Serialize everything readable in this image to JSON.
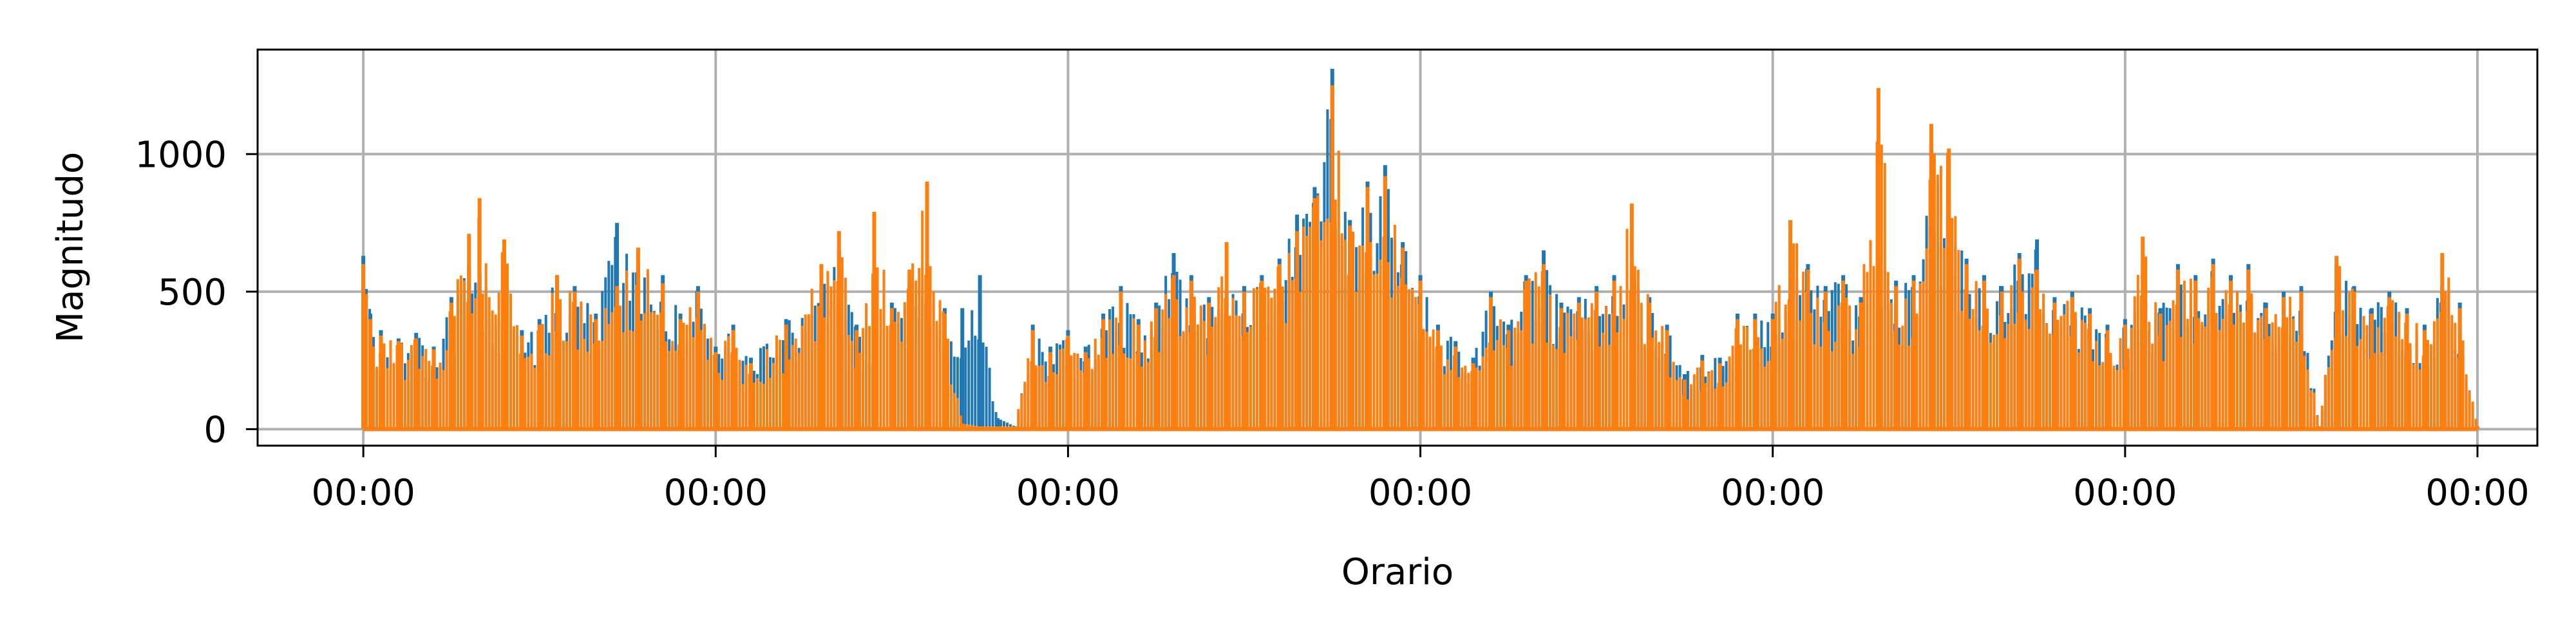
{
  "chart_data": {
    "type": "line",
    "title": "",
    "xlabel": "Orario",
    "ylabel": "Magnitudo",
    "x_tick_labels": [
      "00:00",
      "00:00",
      "00:00",
      "00:00",
      "00:00",
      "00:00",
      "00:00"
    ],
    "x_ticks": [
      0,
      1,
      2,
      3,
      4,
      5,
      6
    ],
    "xlim": [
      -0.3,
      6.17
    ],
    "y_ticks": [
      0,
      500,
      1000
    ],
    "y_tick_labels": [
      "0",
      "500",
      "1000"
    ],
    "ylim": [
      -60,
      1380
    ],
    "grid": true,
    "legend": "none",
    "series": [
      {
        "color": "#1f77b4",
        "x": [
          0.0,
          0.02,
          0.05,
          0.1,
          0.15,
          0.2,
          0.25,
          0.3,
          0.33,
          0.4,
          0.45,
          0.5,
          0.55,
          0.6,
          0.66,
          0.72,
          0.78,
          0.85,
          0.9,
          0.95,
          1.0,
          1.05,
          1.1,
          1.2,
          1.3,
          1.35,
          1.4,
          1.45,
          1.5,
          1.55,
          1.6,
          1.65,
          1.7,
          1.75,
          1.8,
          1.85,
          1.9,
          1.95,
          2.0,
          2.05,
          2.1,
          2.15,
          2.2,
          2.25,
          2.3,
          2.35,
          2.4,
          2.45,
          2.5,
          2.55,
          2.6,
          2.65,
          2.7,
          2.75,
          2.8,
          2.85,
          2.9,
          2.95,
          3.0,
          3.05,
          3.1,
          3.15,
          3.2,
          3.25,
          3.3,
          3.35,
          3.4,
          3.45,
          3.5,
          3.55,
          3.6,
          3.65,
          3.7,
          3.75,
          3.8,
          3.85,
          3.9,
          3.95,
          4.0,
          4.05,
          4.1,
          4.15,
          4.2,
          4.25,
          4.3,
          4.35,
          4.4,
          4.45,
          4.5,
          4.55,
          4.6,
          4.65,
          4.7,
          4.75,
          4.8,
          4.85,
          4.9,
          4.95,
          5.0,
          5.05,
          5.1,
          5.15,
          5.2,
          5.25,
          5.3,
          5.35,
          5.4,
          5.45,
          5.5,
          5.55,
          5.6,
          5.65,
          5.7,
          5.75,
          5.8,
          5.85,
          5.9,
          5.95,
          6.0
        ],
        "y": [
          630,
          420,
          360,
          330,
          350,
          300,
          480,
          600,
          560,
          420,
          360,
          400,
          560,
          520,
          420,
          750,
          600,
          560,
          420,
          520,
          300,
          380,
          260,
          400,
          520,
          650,
          380,
          340,
          460,
          520,
          600,
          440,
          440,
          560,
          40,
          10,
          380,
          300,
          360,
          300,
          420,
          520,
          400,
          460,
          640,
          560,
          480,
          500,
          520,
          560,
          620,
          780,
          880,
          1310,
          760,
          900,
          960,
          680,
          560,
          380,
          320,
          260,
          500,
          380,
          560,
          650,
          460,
          480,
          520,
          560,
          600,
          480,
          380,
          200,
          270,
          260,
          420,
          420,
          420,
          560,
          600,
          520,
          560,
          480,
          620,
          540,
          560,
          1040,
          830,
          620,
          560,
          520,
          640,
          690,
          480,
          500,
          440,
          380,
          400,
          480,
          440,
          600,
          560,
          620,
          560,
          600,
          460,
          500,
          520,
          10,
          600,
          520,
          440,
          500,
          440,
          380,
          520,
          460,
          10
        ],
        "values_note": ""
      },
      {
        "color": "#ff7f0e",
        "x": [
          0.0,
          0.02,
          0.05,
          0.1,
          0.15,
          0.2,
          0.25,
          0.3,
          0.33,
          0.4,
          0.45,
          0.5,
          0.55,
          0.6,
          0.66,
          0.72,
          0.78,
          0.85,
          0.9,
          0.95,
          1.0,
          1.05,
          1.1,
          1.2,
          1.3,
          1.35,
          1.4,
          1.45,
          1.5,
          1.55,
          1.6,
          1.65,
          1.7,
          1.75,
          1.8,
          1.85,
          1.9,
          1.95,
          2.0,
          2.05,
          2.1,
          2.15,
          2.2,
          2.25,
          2.3,
          2.35,
          2.4,
          2.45,
          2.5,
          2.55,
          2.6,
          2.65,
          2.7,
          2.75,
          2.8,
          2.85,
          2.9,
          2.95,
          3.0,
          3.05,
          3.1,
          3.15,
          3.2,
          3.25,
          3.3,
          3.35,
          3.4,
          3.45,
          3.5,
          3.55,
          3.6,
          3.65,
          3.7,
          3.75,
          3.8,
          3.85,
          3.9,
          3.95,
          4.0,
          4.05,
          4.1,
          4.15,
          4.2,
          4.25,
          4.3,
          4.35,
          4.4,
          4.45,
          4.5,
          4.55,
          4.6,
          4.65,
          4.7,
          4.75,
          4.8,
          4.85,
          4.9,
          4.95,
          5.0,
          5.05,
          5.1,
          5.15,
          5.2,
          5.25,
          5.3,
          5.35,
          5.4,
          5.45,
          5.5,
          5.55,
          5.6,
          5.65,
          5.7,
          5.75,
          5.8,
          5.85,
          5.9,
          5.95,
          6.0
        ],
        "y": [
          600,
          400,
          340,
          320,
          330,
          290,
          460,
          710,
          840,
          690,
          340,
          380,
          560,
          500,
          400,
          520,
          660,
          530,
          400,
          500,
          280,
          360,
          240,
          380,
          600,
          720,
          360,
          790,
          440,
          580,
          900,
          420,
          20,
          10,
          10,
          10,
          360,
          280,
          340,
          280,
          400,
          500,
          380,
          440,
          560,
          540,
          460,
          680,
          500,
          540,
          600,
          720,
          840,
          1250,
          740,
          880,
          920,
          660,
          540,
          360,
          300,
          240,
          480,
          360,
          540,
          600,
          440,
          460,
          500,
          540,
          820,
          460,
          360,
          180,
          250,
          240,
          400,
          400,
          400,
          760,
          580,
          500,
          540,
          460,
          1240,
          520,
          540,
          1110,
          1020,
          600,
          540,
          500,
          620,
          580,
          460,
          480,
          420,
          360,
          380,
          700,
          420,
          580,
          540,
          600,
          540,
          580,
          440,
          480,
          500,
          10,
          630,
          500,
          420,
          480,
          420,
          360,
          640,
          440,
          10
        ],
        "values_note": ""
      }
    ]
  }
}
